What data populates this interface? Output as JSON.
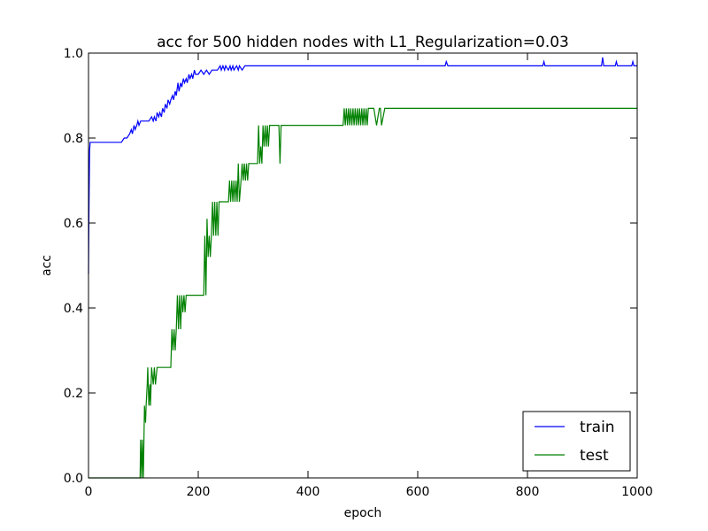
{
  "chart_data": {
    "type": "line",
    "title": "acc for 500 hidden nodes with L1_Regularization=0.03",
    "xlabel": "epoch",
    "ylabel": "acc",
    "xlim": [
      0,
      1000
    ],
    "ylim": [
      0.0,
      1.0
    ],
    "xticks": [
      0,
      200,
      400,
      600,
      800,
      1000
    ],
    "xtick_labels": [
      "0",
      "200",
      "400",
      "600",
      "800",
      "1000"
    ],
    "yticks": [
      0.0,
      0.2,
      0.4,
      0.6,
      0.8,
      1.0
    ],
    "ytick_labels": [
      "0.0",
      "0.2",
      "0.4",
      "0.6",
      "0.8",
      "1.0"
    ],
    "legend_position": "lower-right",
    "grid": false,
    "series": [
      {
        "name": "train",
        "color": "#0000ff",
        "x": [
          0,
          1,
          2,
          3,
          10,
          30,
          60,
          65,
          70,
          75,
          78,
          80,
          83,
          85,
          88,
          90,
          92,
          95,
          100,
          105,
          110,
          115,
          118,
          120,
          123,
          125,
          128,
          130,
          133,
          135,
          138,
          140,
          143,
          145,
          148,
          150,
          153,
          155,
          158,
          160,
          163,
          165,
          168,
          170,
          173,
          175,
          178,
          180,
          183,
          185,
          188,
          190,
          193,
          195,
          198,
          200,
          205,
          210,
          215,
          220,
          225,
          230,
          235,
          240,
          242,
          245,
          248,
          250,
          255,
          258,
          260,
          263,
          265,
          270,
          273,
          275,
          280,
          285,
          290,
          295,
          300,
          310,
          400,
          500,
          600,
          650,
          652,
          655,
          700,
          800,
          828,
          830,
          832,
          900,
          935,
          937,
          939,
          960,
          962,
          964,
          990,
          992,
          994,
          1000
        ],
        "y": [
          0.48,
          0.65,
          0.77,
          0.79,
          0.79,
          0.79,
          0.79,
          0.8,
          0.8,
          0.81,
          0.82,
          0.81,
          0.83,
          0.82,
          0.83,
          0.84,
          0.83,
          0.84,
          0.84,
          0.84,
          0.84,
          0.85,
          0.84,
          0.85,
          0.84,
          0.86,
          0.85,
          0.86,
          0.85,
          0.87,
          0.86,
          0.88,
          0.87,
          0.89,
          0.88,
          0.89,
          0.9,
          0.89,
          0.91,
          0.9,
          0.93,
          0.91,
          0.93,
          0.92,
          0.94,
          0.93,
          0.94,
          0.93,
          0.95,
          0.94,
          0.95,
          0.94,
          0.96,
          0.95,
          0.95,
          0.95,
          0.96,
          0.95,
          0.96,
          0.95,
          0.96,
          0.96,
          0.96,
          0.97,
          0.96,
          0.97,
          0.96,
          0.97,
          0.96,
          0.97,
          0.96,
          0.97,
          0.96,
          0.97,
          0.96,
          0.97,
          0.96,
          0.97,
          0.97,
          0.97,
          0.97,
          0.97,
          0.97,
          0.97,
          0.97,
          0.97,
          0.98,
          0.97,
          0.97,
          0.97,
          0.97,
          0.98,
          0.97,
          0.97,
          0.97,
          0.99,
          0.97,
          0.97,
          0.98,
          0.97,
          0.97,
          0.98,
          0.97,
          0.97
        ]
      },
      {
        "name": "test",
        "color": "#008000",
        "x": [
          0,
          94,
          95,
          97,
          98,
          100,
          102,
          104,
          105,
          107,
          108,
          110,
          112,
          113,
          115,
          118,
          120,
          122,
          125,
          130,
          140,
          150,
          152,
          154,
          156,
          158,
          160,
          162,
          164,
          166,
          168,
          170,
          172,
          174,
          176,
          178,
          180,
          195,
          205,
          210,
          212,
          214,
          216,
          218,
          220,
          222,
          224,
          226,
          228,
          230,
          232,
          234,
          236,
          238,
          240,
          250,
          255,
          257,
          259,
          261,
          263,
          265,
          267,
          269,
          271,
          273,
          275,
          278,
          280,
          282,
          284,
          286,
          288,
          290,
          292,
          294,
          296,
          298,
          300,
          302,
          304,
          306,
          308,
          310,
          312,
          314,
          316,
          318,
          320,
          322,
          324,
          326,
          328,
          330,
          340,
          347,
          349,
          351,
          360,
          440,
          464,
          466,
          468,
          470,
          472,
          474,
          476,
          478,
          480,
          482,
          484,
          486,
          488,
          490,
          492,
          494,
          496,
          498,
          500,
          502,
          504,
          506,
          508,
          510,
          515,
          520,
          525,
          530,
          532,
          534,
          540,
          600,
          700,
          800,
          900,
          1000
        ],
        "y": [
          0.0,
          0.0,
          0.09,
          0.0,
          0.09,
          0.0,
          0.17,
          0.13,
          0.17,
          0.22,
          0.26,
          0.17,
          0.22,
          0.17,
          0.26,
          0.22,
          0.26,
          0.22,
          0.26,
          0.26,
          0.26,
          0.26,
          0.35,
          0.3,
          0.35,
          0.3,
          0.35,
          0.43,
          0.35,
          0.43,
          0.35,
          0.43,
          0.39,
          0.43,
          0.39,
          0.43,
          0.43,
          0.43,
          0.43,
          0.43,
          0.57,
          0.43,
          0.61,
          0.52,
          0.57,
          0.52,
          0.57,
          0.65,
          0.57,
          0.65,
          0.57,
          0.65,
          0.57,
          0.65,
          0.65,
          0.65,
          0.65,
          0.7,
          0.65,
          0.7,
          0.65,
          0.7,
          0.65,
          0.7,
          0.65,
          0.74,
          0.65,
          0.7,
          0.74,
          0.7,
          0.74,
          0.7,
          0.74,
          0.7,
          0.74,
          0.74,
          0.74,
          0.74,
          0.74,
          0.74,
          0.74,
          0.74,
          0.74,
          0.83,
          0.74,
          0.78,
          0.74,
          0.83,
          0.78,
          0.83,
          0.78,
          0.83,
          0.78,
          0.83,
          0.83,
          0.83,
          0.74,
          0.83,
          0.83,
          0.83,
          0.83,
          0.87,
          0.83,
          0.87,
          0.83,
          0.87,
          0.83,
          0.87,
          0.83,
          0.87,
          0.83,
          0.87,
          0.83,
          0.87,
          0.83,
          0.87,
          0.83,
          0.87,
          0.83,
          0.87,
          0.83,
          0.87,
          0.83,
          0.87,
          0.87,
          0.87,
          0.83,
          0.87,
          0.87,
          0.83,
          0.87,
          0.87,
          0.87,
          0.87,
          0.87,
          0.87
        ]
      }
    ]
  }
}
